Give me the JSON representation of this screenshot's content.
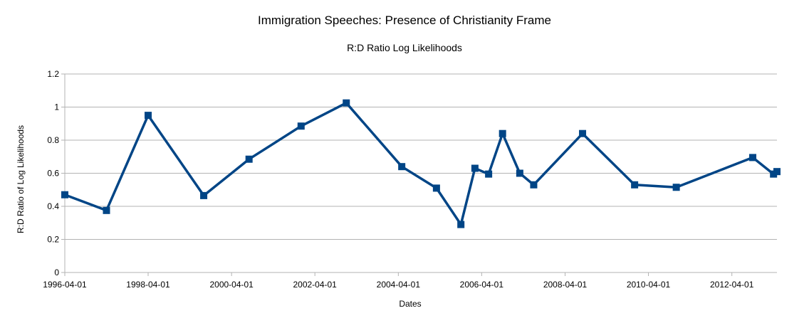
{
  "chart_data": {
    "type": "line",
    "title": "Immigration Speeches: Presence of Christianity Frame",
    "subtitle": "R:D Ratio Log Likelihoods",
    "xlabel": "Dates",
    "ylabel": "R:D Ratio of Log Likelihoods",
    "ylim": [
      0,
      1.2
    ],
    "yticks": [
      "0",
      "0.2",
      "0.4",
      "0.6",
      "0.8",
      "1",
      "1.2"
    ],
    "xlim": [
      "1996-04-01",
      "2013-05-01"
    ],
    "xticks": [
      "1996-04-01",
      "1998-04-01",
      "2000-04-01",
      "2002-04-01",
      "2004-04-01",
      "2006-04-01",
      "2008-04-01",
      "2010-04-01",
      "2012-04-01"
    ],
    "grid": true,
    "legend": "none",
    "colors": {
      "series": "#004586",
      "grid": "#b3b3b3"
    },
    "series": [
      {
        "name": "R:D Ratio",
        "marker": "square",
        "points": [
          {
            "x": "1996-04-01",
            "y": 0.47
          },
          {
            "x": "1997-04-01",
            "y": 0.375
          },
          {
            "x": "1998-04-01",
            "y": 0.95
          },
          {
            "x": "1999-08-01",
            "y": 0.465
          },
          {
            "x": "2000-09-01",
            "y": 0.685
          },
          {
            "x": "2001-12-01",
            "y": 0.885
          },
          {
            "x": "2003-01-01",
            "y": 1.025
          },
          {
            "x": "2004-05-01",
            "y": 0.64
          },
          {
            "x": "2005-03-01",
            "y": 0.51
          },
          {
            "x": "2005-10-01",
            "y": 0.29
          },
          {
            "x": "2006-02-01",
            "y": 0.63
          },
          {
            "x": "2006-06-01",
            "y": 0.595
          },
          {
            "x": "2006-10-01",
            "y": 0.84
          },
          {
            "x": "2007-03-01",
            "y": 0.6
          },
          {
            "x": "2007-07-01",
            "y": 0.53
          },
          {
            "x": "2008-09-01",
            "y": 0.84
          },
          {
            "x": "2009-12-01",
            "y": 0.53
          },
          {
            "x": "2010-12-01",
            "y": 0.515
          },
          {
            "x": "2012-10-01",
            "y": 0.695
          },
          {
            "x": "2013-04-01",
            "y": 0.595
          },
          {
            "x": "2013-05-01",
            "y": 0.61
          }
        ]
      }
    ]
  }
}
